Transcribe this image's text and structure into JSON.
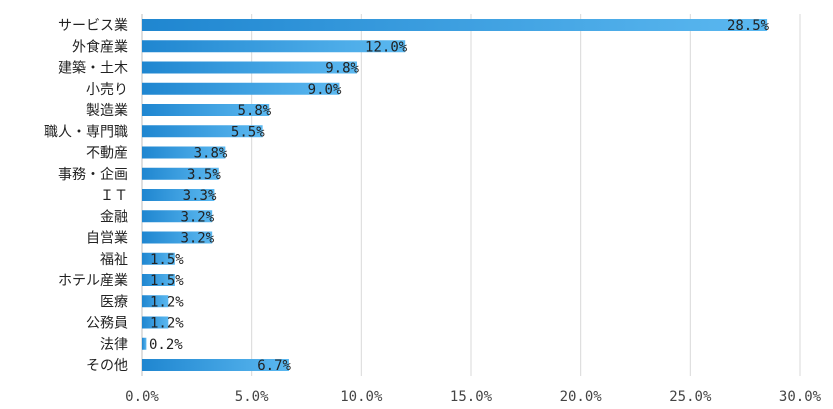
{
  "chart_data": {
    "type": "bar",
    "orientation": "horizontal",
    "categories": [
      "サービス業",
      "外食産業",
      "建築・土木",
      "小売り",
      "製造業",
      "職人・専門職",
      "不動産",
      "事務・企画",
      "ＩＴ",
      "金融",
      "自営業",
      "福祉",
      "ホテル産業",
      "医療",
      "公務員",
      "法律",
      "その他"
    ],
    "values": [
      28.5,
      12.0,
      9.8,
      9.0,
      5.8,
      5.5,
      3.8,
      3.5,
      3.3,
      3.2,
      3.2,
      1.5,
      1.5,
      1.2,
      1.2,
      0.2,
      6.7
    ],
    "data_labels": [
      "28.5%",
      "12.0%",
      "9.8%",
      "9.0%",
      "5.8%",
      "5.5%",
      "3.8%",
      "3.5%",
      "3.3%",
      "3.2%",
      "3.2%",
      "1.5%",
      "1.5%",
      "1.2%",
      "1.2%",
      "0.2%",
      "6.7%"
    ],
    "xlim": [
      0,
      30
    ],
    "x_ticks": [
      0,
      5,
      10,
      15,
      20,
      25,
      30
    ],
    "x_tick_labels": [
      "0.0%",
      "5.0%",
      "10.0%",
      "15.0%",
      "20.0%",
      "25.0%",
      "30.0%"
    ],
    "grid": true,
    "legend": "none",
    "colors": {
      "bar_dark": "#1f86d0",
      "bar_light": "#5bb8f0",
      "grid": "#d9d9d9"
    }
  }
}
